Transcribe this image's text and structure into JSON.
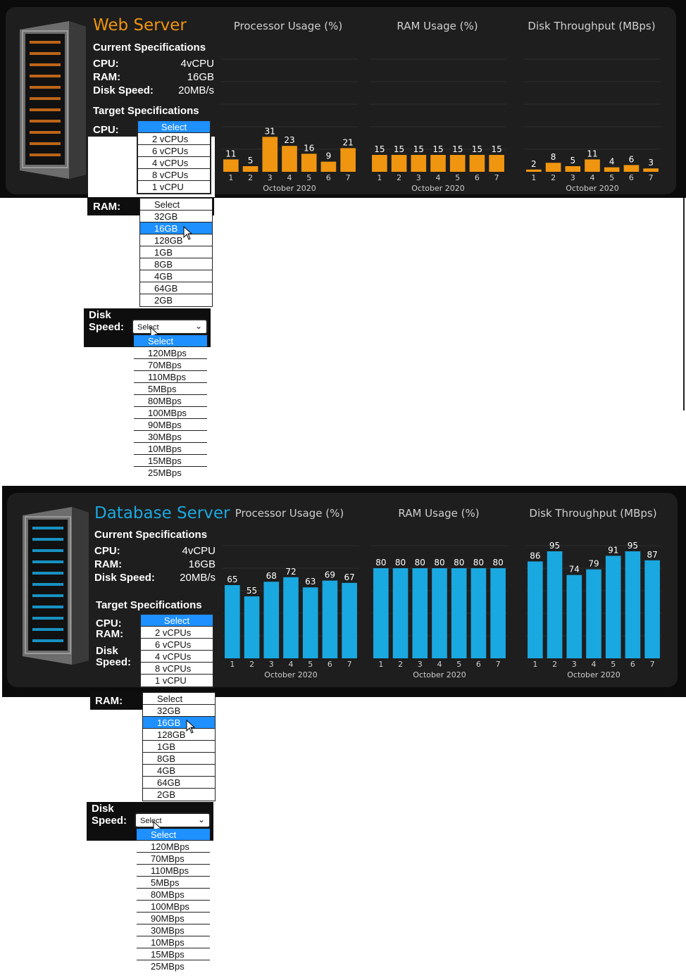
{
  "panels": [
    {
      "title": "Web Server",
      "accent": "#f0950f",
      "current_heading": "Current Specifications",
      "cpu_label": "CPU:",
      "cpu_value": "4vCPU",
      "ram_label": "RAM:",
      "ram_value": "16GB",
      "disk_label": "Disk Speed:",
      "disk_value": "20MB/s",
      "target_heading": "Target Specifications",
      "target_cpu_label": "CPU:",
      "cpu_options": [
        "Select",
        "2 vCPUs",
        "6 vCPUs",
        "4 vCPUs",
        "8 vCPUs",
        "1 vCPU"
      ],
      "ram_dd_label": "RAM:",
      "ram_options": [
        "Select",
        "32GB",
        "16GB",
        "128GB",
        "1GB",
        "8GB",
        "4GB",
        "64GB",
        "2GB"
      ],
      "disk_dd_label_1": "Disk",
      "disk_dd_label_2": "Speed:",
      "disk_closed_value": "Select",
      "disk_options": [
        "Select",
        "120MBps",
        "70MBps",
        "110MBps",
        "5MBps",
        "80MBps",
        "100MBps",
        "90MBps",
        "30MBps",
        "10MBps",
        "15MBps",
        "25MBps"
      ]
    },
    {
      "title": "Database Server",
      "accent": "#1aa8e0",
      "current_heading": "Current Specifications",
      "cpu_label": "CPU:",
      "cpu_value": "4vCPU",
      "ram_label": "RAM:",
      "ram_value": "16GB",
      "disk_label": "Disk Speed:",
      "disk_value": "20MB/s",
      "target_heading": "Target Specifications",
      "target_cpu_label": "CPU:",
      "target_ram_label": "RAM:",
      "target_disk_label_1": "Disk",
      "target_disk_label_2": "Speed:",
      "cpu_options": [
        "Select",
        "2 vCPUs",
        "6 vCPUs",
        "4 vCPUs",
        "8 vCPUs",
        "1 vCPU"
      ],
      "ram_dd_label": "RAM:",
      "ram_options": [
        "Select",
        "32GB",
        "16GB",
        "128GB",
        "1GB",
        "8GB",
        "4GB",
        "64GB",
        "2GB"
      ],
      "disk_dd_label_1": "Disk",
      "disk_dd_label_2": "Speed:",
      "disk_closed_value": "Select",
      "disk_options": [
        "Select",
        "120MBps",
        "70MBps",
        "110MBps",
        "5MBps",
        "80MBps",
        "100MBps",
        "90MBps",
        "30MBps",
        "10MBps",
        "15MBps",
        "25MBps"
      ]
    }
  ],
  "chart_data": [
    {
      "type": "bar",
      "title": "Processor Usage (%)",
      "xlabel": "October 2020",
      "categories": [
        "1",
        "2",
        "3",
        "4",
        "5",
        "6",
        "7"
      ],
      "values": [
        11,
        5,
        31,
        23,
        16,
        9,
        21
      ],
      "ylim": [
        0,
        100
      ],
      "color": "#f0950f"
    },
    {
      "type": "bar",
      "title": "RAM Usage (%)",
      "xlabel": "October 2020",
      "categories": [
        "1",
        "2",
        "3",
        "4",
        "5",
        "6",
        "7"
      ],
      "values": [
        15,
        15,
        15,
        15,
        15,
        15,
        15
      ],
      "ylim": [
        0,
        100
      ],
      "color": "#f0950f"
    },
    {
      "type": "bar",
      "title": "Disk Throughput (MBps)",
      "xlabel": "October 2020",
      "categories": [
        "1",
        "2",
        "3",
        "4",
        "5",
        "6",
        "7"
      ],
      "values": [
        2,
        8,
        5,
        11,
        4,
        6,
        3
      ],
      "ylim": [
        0,
        100
      ],
      "color": "#f0950f"
    },
    {
      "type": "bar",
      "title": "Processor Usage (%)",
      "xlabel": "October 2020",
      "categories": [
        "1",
        "2",
        "3",
        "4",
        "5",
        "6",
        "7"
      ],
      "values": [
        65,
        55,
        68,
        72,
        63,
        69,
        67
      ],
      "ylim": [
        0,
        100
      ],
      "color": "#1aa8e0"
    },
    {
      "type": "bar",
      "title": "RAM Usage (%)",
      "xlabel": "October 2020",
      "categories": [
        "1",
        "2",
        "3",
        "4",
        "5",
        "6",
        "7"
      ],
      "values": [
        80,
        80,
        80,
        80,
        80,
        80,
        80
      ],
      "ylim": [
        0,
        100
      ],
      "color": "#1aa8e0"
    },
    {
      "type": "bar",
      "title": "Disk Throughput (MBps)",
      "xlabel": "October 2020",
      "categories": [
        "1",
        "2",
        "3",
        "4",
        "5",
        "6",
        "7"
      ],
      "values": [
        86,
        95,
        74,
        79,
        91,
        95,
        87
      ],
      "ylim": [
        0,
        100
      ],
      "color": "#1aa8e0"
    }
  ]
}
